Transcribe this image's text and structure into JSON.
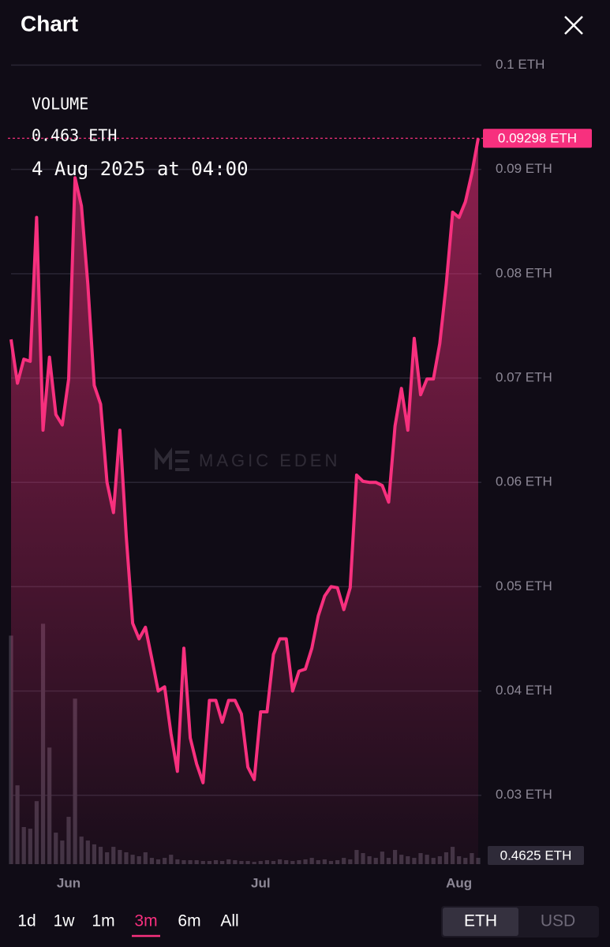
{
  "header": {
    "title": "Chart"
  },
  "chart_data": {
    "type": "line",
    "watermark": "MAGIC EDEN",
    "tooltip": {
      "label": "VOLUME",
      "value": "0.463 ETH",
      "time": "4 Aug 2025 at 04:00"
    },
    "categories": [
      null,
      null,
      null,
      null,
      null,
      null,
      null,
      null,
      null,
      "Jun",
      null,
      null,
      null,
      null,
      null,
      null,
      null,
      null,
      null,
      null,
      null,
      null,
      null,
      null,
      null,
      null,
      null,
      null,
      null,
      null,
      null,
      null,
      null,
      null,
      null,
      null,
      null,
      null,
      null,
      "Jul",
      null,
      null,
      null,
      null,
      null,
      null,
      null,
      null,
      null,
      null,
      null,
      null,
      null,
      null,
      null,
      null,
      null,
      null,
      null,
      null,
      null,
      null,
      null,
      null,
      null,
      null,
      null,
      null,
      null,
      null,
      "Aug",
      null,
      null,
      null
    ],
    "color": "#f7307e",
    "values": [
      0.0737,
      0.0695,
      0.0718,
      0.0716,
      0.0854,
      0.065,
      0.072,
      0.0665,
      0.0655,
      0.0699,
      0.0892,
      0.0865,
      0.079,
      0.0693,
      0.0675,
      0.06,
      0.0571,
      0.065,
      0.0548,
      0.0465,
      0.045,
      0.0461,
      0.0431,
      0.04,
      0.0404,
      0.0359,
      0.0323,
      0.0441,
      0.0355,
      0.033,
      0.0312,
      0.0391,
      0.0391,
      0.037,
      0.0391,
      0.0391,
      0.0378,
      0.0327,
      0.0315,
      0.038,
      0.038,
      0.0435,
      0.045,
      0.045,
      0.04,
      0.0419,
      0.0421,
      0.0441,
      0.0472,
      0.0491,
      0.05,
      0.0499,
      0.0478,
      0.0499,
      0.0607,
      0.0601,
      0.06,
      0.06,
      0.0597,
      0.0581,
      0.0654,
      0.069,
      0.065,
      0.0738,
      0.0684,
      0.0699,
      0.0699,
      0.0733,
      0.079,
      0.0859,
      0.0854,
      0.0869,
      0.0896,
      0.09298
    ],
    "value_labels": [
      null,
      null,
      null,
      null,
      null,
      null,
      null,
      null,
      null,
      null,
      null,
      null,
      null,
      null,
      null,
      null,
      null,
      null,
      null,
      null,
      null,
      null,
      null,
      null,
      null,
      null,
      null,
      null,
      null,
      null,
      null,
      null,
      null,
      null,
      null,
      null,
      null,
      null,
      null,
      null,
      null,
      null,
      null,
      null,
      null,
      null,
      null,
      null,
      null,
      null,
      null,
      null,
      null,
      null,
      null,
      null,
      null,
      null,
      null,
      null,
      null,
      null,
      null,
      null,
      null,
      null,
      null,
      null,
      null,
      null,
      null,
      null,
      null,
      "0.09298 ETH"
    ],
    "volume": {
      "color": "#3b3442",
      "lim": [
        0,
        18
      ],
      "values": [
        16.76,
        5.78,
        2.72,
        2.6,
        4.62,
        17.63,
        8.55,
        2.31,
        1.73,
        3.47,
        12.14,
        2.02,
        1.73,
        1.45,
        1.27,
        0.87,
        1.27,
        1.04,
        0.87,
        0.69,
        0.58,
        0.87,
        0.46,
        0.35,
        0.46,
        0.69,
        0.35,
        0.29,
        0.29,
        0.29,
        0.23,
        0.23,
        0.29,
        0.23,
        0.35,
        0.29,
        0.23,
        0.23,
        0.17,
        0.23,
        0.29,
        0.23,
        0.35,
        0.29,
        0.23,
        0.29,
        0.35,
        0.46,
        0.29,
        0.35,
        0.23,
        0.29,
        0.46,
        0.35,
        1.04,
        0.81,
        0.58,
        0.46,
        0.92,
        0.46,
        1.04,
        0.69,
        0.58,
        0.46,
        0.81,
        0.69,
        0.46,
        0.58,
        0.87,
        1.27,
        0.58,
        0.46,
        0.81,
        0.4625
      ],
      "value_labels": [
        null,
        null,
        null,
        null,
        null,
        null,
        null,
        null,
        null,
        null,
        null,
        null,
        null,
        null,
        null,
        null,
        null,
        null,
        null,
        null,
        null,
        null,
        null,
        null,
        null,
        null,
        null,
        null,
        null,
        null,
        null,
        null,
        null,
        null,
        null,
        null,
        null,
        null,
        null,
        null,
        null,
        null,
        null,
        null,
        null,
        null,
        null,
        null,
        null,
        null,
        null,
        null,
        null,
        null,
        null,
        null,
        null,
        null,
        null,
        null,
        null,
        null,
        null,
        null,
        null,
        null,
        null,
        null,
        null,
        null,
        null,
        null,
        null,
        "0.4625 ETH"
      ]
    },
    "ylim": [
      0.0234,
      0.1017
    ],
    "yticks": [
      {
        "value": 0.1,
        "label": "0.1 ETH"
      },
      {
        "value": 0.09,
        "label": "0.09 ETH"
      },
      {
        "value": 0.08,
        "label": "0.08 ETH"
      },
      {
        "value": 0.07,
        "label": "0.07 ETH"
      },
      {
        "value": 0.06,
        "label": "0.06 ETH"
      },
      {
        "value": 0.05,
        "label": "0.05 ETH"
      },
      {
        "value": 0.04,
        "label": "0.04 ETH"
      },
      {
        "value": 0.03,
        "label": "0.03 ETH"
      }
    ],
    "grid": true
  },
  "controls": {
    "ranges": [
      "1d",
      "1w",
      "1m",
      "3m",
      "6m",
      "All"
    ],
    "active_range": 3,
    "currencies": [
      "ETH",
      "USD"
    ],
    "active_currency": 0
  }
}
